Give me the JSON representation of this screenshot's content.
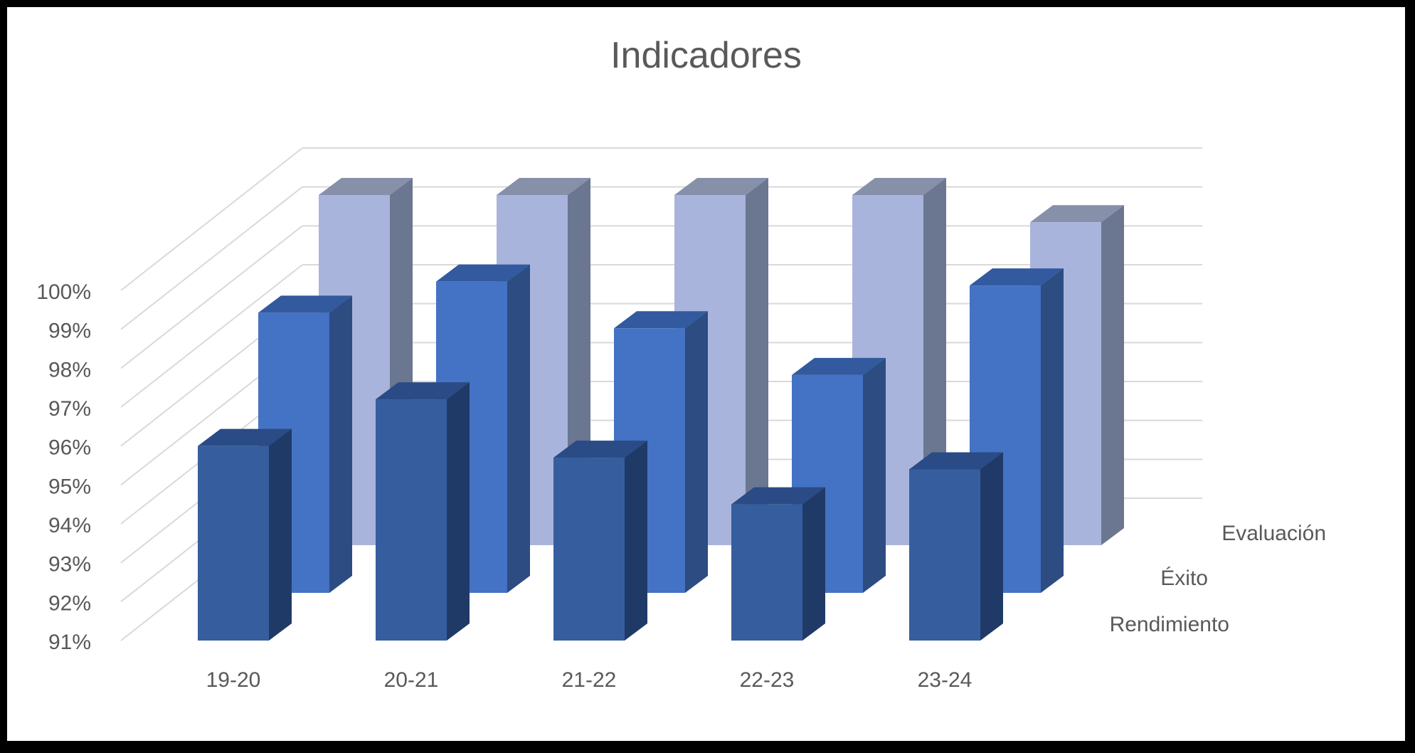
{
  "chart_data": {
    "type": "bar",
    "title": "Indicadores",
    "xlabel": "",
    "ylabel": "",
    "categories": [
      "19-20",
      "20-21",
      "21-22",
      "22-23",
      "23-24"
    ],
    "y_ticks": [
      "91%",
      "92%",
      "93%",
      "94%",
      "95%",
      "96%",
      "97%",
      "98%",
      "99%",
      "100%"
    ],
    "ylim": [
      91,
      100
    ],
    "grid": true,
    "legend": "depth-axis labels on right",
    "series": [
      {
        "name": "Rendimiento",
        "values": [
          96.0,
          97.2,
          95.7,
          94.5,
          95.4
        ],
        "front": "#365e9e",
        "side": "#203a67",
        "top": "#2a4b85"
      },
      {
        "name": "Éxito",
        "values": [
          98.2,
          99.0,
          97.8,
          96.6,
          98.9
        ],
        "front": "#4472c4",
        "side": "#2c4c82",
        "top": "#33599e"
      },
      {
        "name": "Evaluación",
        "values": [
          100.0,
          100.0,
          100.0,
          100.0,
          99.3
        ],
        "front": "#a9b4dc",
        "side": "#6b7690",
        "top": "#8790a9"
      }
    ]
  }
}
